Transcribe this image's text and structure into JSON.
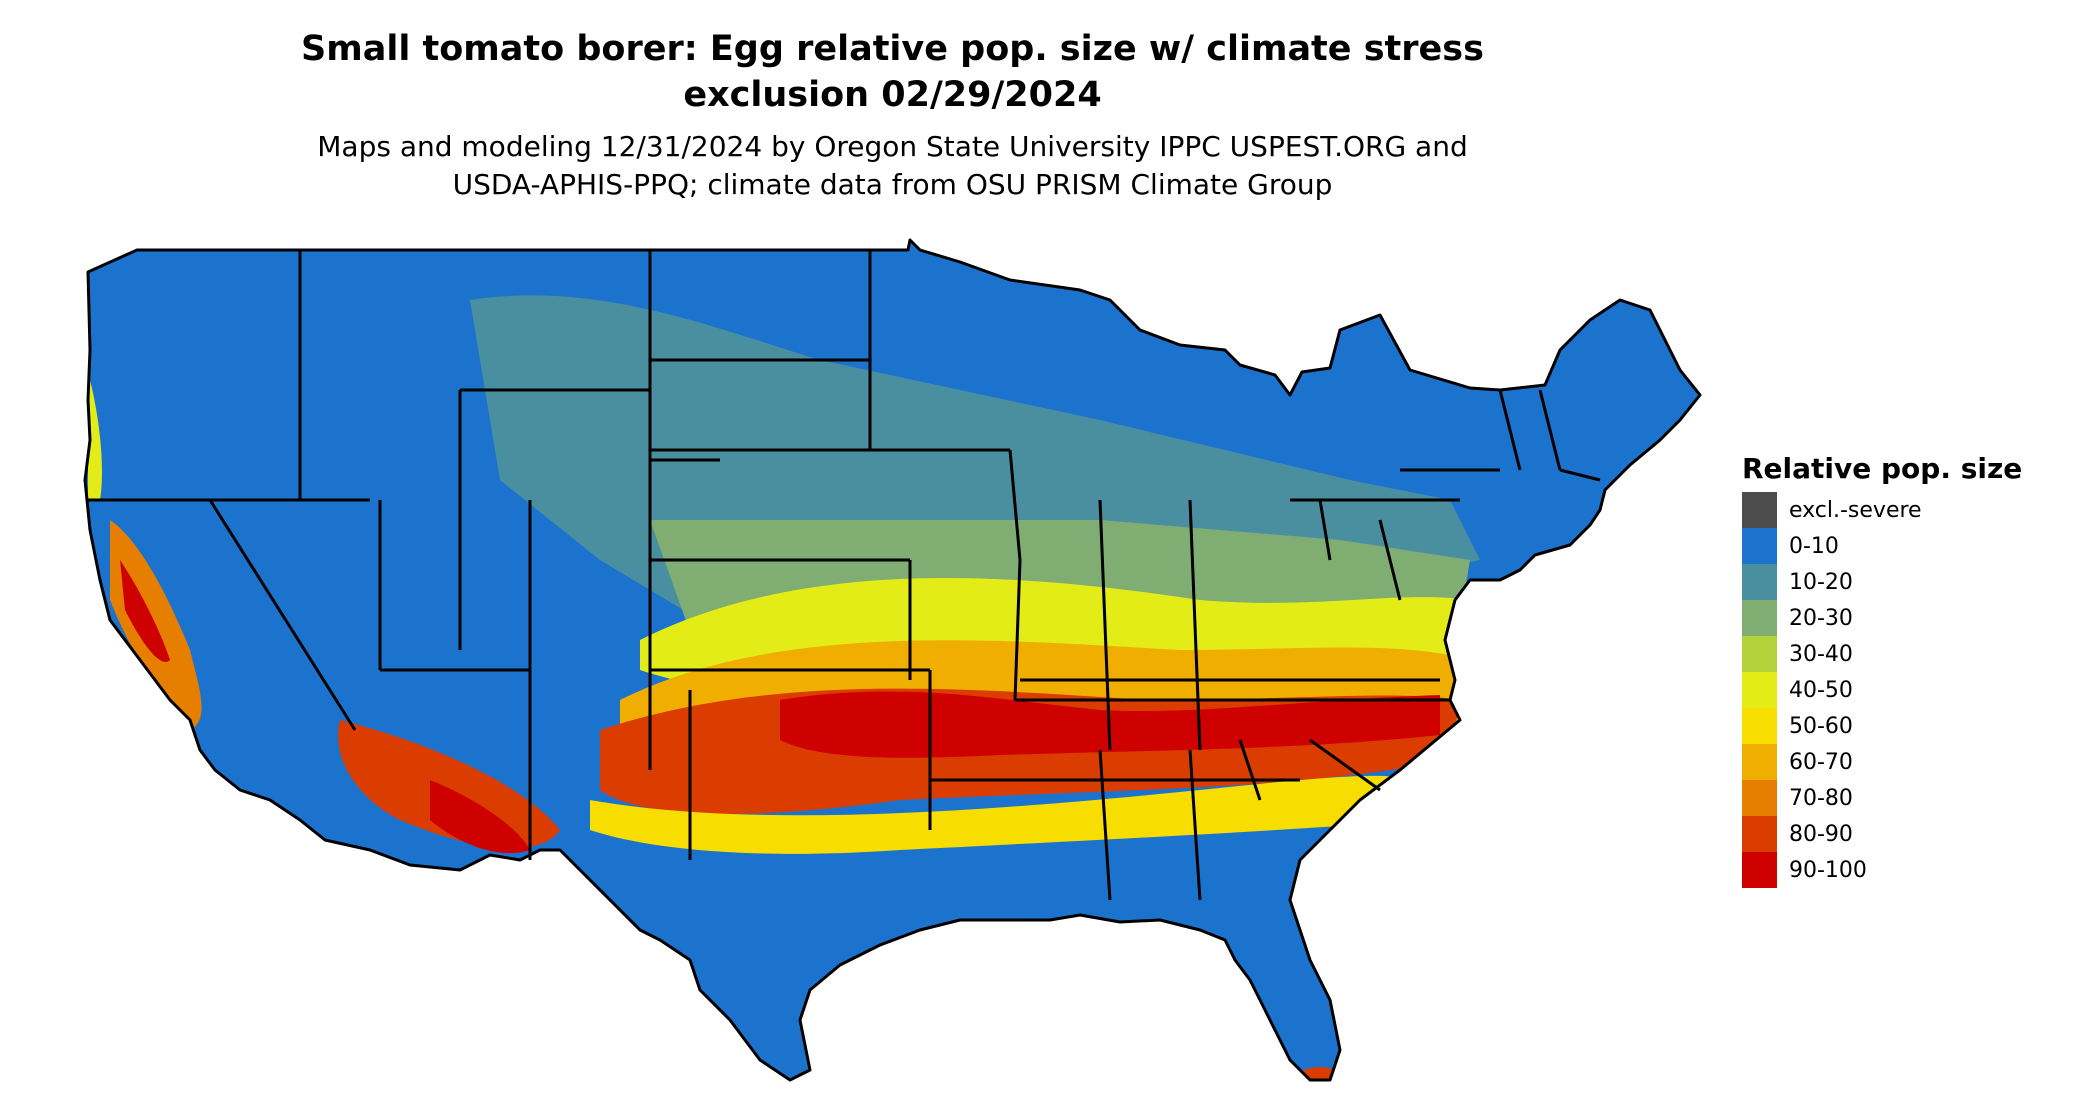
{
  "title_line1": "Small tomato borer: Egg relative pop. size w/ climate stress",
  "title_line2": "exclusion 02/29/2024",
  "subtitle_line1": "Maps and modeling 12/31/2024 by Oregon State University IPPC USPEST.ORG and",
  "subtitle_line2": "USDA-APHIS-PPQ; climate data from OSU PRISM Climate Group",
  "legend": {
    "title": "Relative pop. size",
    "items": [
      {
        "label": "excl.-severe",
        "color": "#4d4d4d"
      },
      {
        "label": "0-10",
        "color": "#1c73cd"
      },
      {
        "label": "10-20",
        "color": "#4a8fa0"
      },
      {
        "label": "20-30",
        "color": "#7fad72"
      },
      {
        "label": "30-40",
        "color": "#b3d13b"
      },
      {
        "label": "40-50",
        "color": "#e3ec17"
      },
      {
        "label": "50-60",
        "color": "#f8dd00"
      },
      {
        "label": "60-70",
        "color": "#f0ae00"
      },
      {
        "label": "70-80",
        "color": "#e67f00"
      },
      {
        "label": "80-90",
        "color": "#db3d00"
      },
      {
        "label": "90-100",
        "color": "#cf0000"
      }
    ]
  }
}
